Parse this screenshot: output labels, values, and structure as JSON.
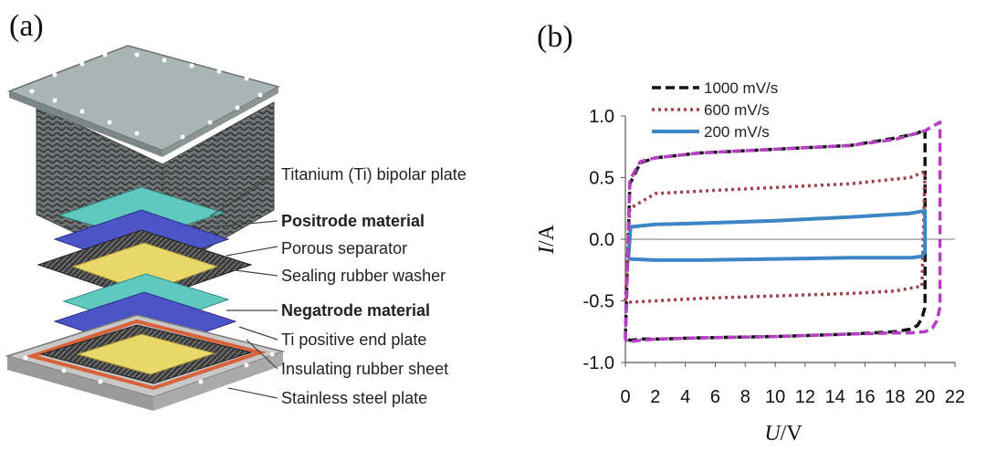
{
  "panel_a": {
    "label": "(a)",
    "callouts": [
      {
        "text": "Titanium (Ti) bipolar plate",
        "bold": false
      },
      {
        "text": "Positrode material",
        "bold": true
      },
      {
        "text": "Porous separator",
        "bold": false
      },
      {
        "text": "Sealing rubber washer",
        "bold": false
      },
      {
        "text": "Negatrode material",
        "bold": true
      },
      {
        "text": "Ti positive end plate",
        "bold": false
      },
      {
        "text": "Insulating rubber sheet",
        "bold": false
      },
      {
        "text": "Stainless steel plate",
        "bold": false
      }
    ],
    "colors": {
      "titanium": "#a9b4b4",
      "positrode": "#5fc9c0",
      "negatrode": "#4b55c8",
      "separator": "#e8d86a",
      "rubber": "#3a3a3a",
      "steel": "#c8c8c8",
      "insulating": "#d8623a"
    }
  },
  "chart_data": {
    "label": "(b)",
    "type": "line",
    "xlabel_italic": "U",
    "xlabel_unit": "/V",
    "ylabel_italic": "I",
    "ylabel_unit": "/A",
    "xlim": [
      0,
      22
    ],
    "ylim": [
      -1.0,
      1.0
    ],
    "xticks": [
      0,
      2,
      4,
      6,
      8,
      10,
      12,
      14,
      16,
      18,
      20,
      22
    ],
    "yticks": [
      -1.0,
      -0.5,
      0.0,
      0.5,
      1.0
    ],
    "ytick_labels": [
      "-1.0",
      "-0.5",
      "0.0",
      "0.5",
      "1.0"
    ],
    "legend": {
      "placement": "top-left"
    },
    "series": [
      {
        "name": "1000 mV/s",
        "color": "#111111",
        "style": "dashed",
        "x": [
          0,
          0.3,
          1,
          2,
          5,
          10,
          15,
          18,
          19.5,
          19.8,
          20,
          20,
          19.8,
          19.5,
          19,
          18,
          15,
          10,
          5,
          2,
          1,
          0.3,
          0
        ],
        "y": [
          -0.8,
          0.45,
          0.62,
          0.66,
          0.7,
          0.73,
          0.76,
          0.82,
          0.86,
          0.88,
          0.89,
          -0.55,
          -0.64,
          -0.7,
          -0.73,
          -0.75,
          -0.77,
          -0.79,
          -0.8,
          -0.81,
          -0.81,
          -0.82,
          -0.8
        ]
      },
      {
        "name": "600 mV/s",
        "color": "#a0404a",
        "style": "dotted",
        "x": [
          0,
          0.3,
          2,
          5,
          10,
          15,
          19,
          20,
          19.8,
          18,
          15,
          10,
          5,
          2,
          0.3,
          0
        ],
        "y": [
          -0.5,
          0.25,
          0.37,
          0.39,
          0.42,
          0.45,
          0.5,
          0.55,
          -0.38,
          -0.42,
          -0.44,
          -0.46,
          -0.48,
          -0.5,
          -0.51,
          -0.5
        ]
      },
      {
        "name": "200 mV/s",
        "color": "#3d86c6",
        "style": "solid",
        "x": [
          0.2,
          0.35,
          2,
          5,
          10,
          15,
          19,
          20,
          20,
          19.8,
          19,
          15,
          10,
          5,
          2,
          0.3,
          0.2
        ],
        "y": [
          -0.15,
          0.1,
          0.12,
          0.13,
          0.15,
          0.18,
          0.21,
          0.23,
          -0.1,
          -0.14,
          -0.15,
          -0.15,
          -0.16,
          -0.17,
          -0.17,
          -0.16,
          -0.15
        ]
      },
      {
        "name": "",
        "color": "#b53fc2",
        "style": "dashed",
        "x": [
          0,
          0.3,
          1,
          2,
          5,
          10,
          15,
          18,
          20,
          21,
          21,
          20.8,
          20.5,
          20,
          19,
          18,
          15,
          10,
          5,
          2,
          1,
          0.3,
          0
        ],
        "y": [
          -0.82,
          0.48,
          0.63,
          0.66,
          0.7,
          0.73,
          0.76,
          0.81,
          0.88,
          0.95,
          -0.55,
          -0.66,
          -0.72,
          -0.75,
          -0.76,
          -0.76,
          -0.77,
          -0.79,
          -0.8,
          -0.81,
          -0.82,
          -0.83,
          -0.82
        ]
      }
    ]
  }
}
